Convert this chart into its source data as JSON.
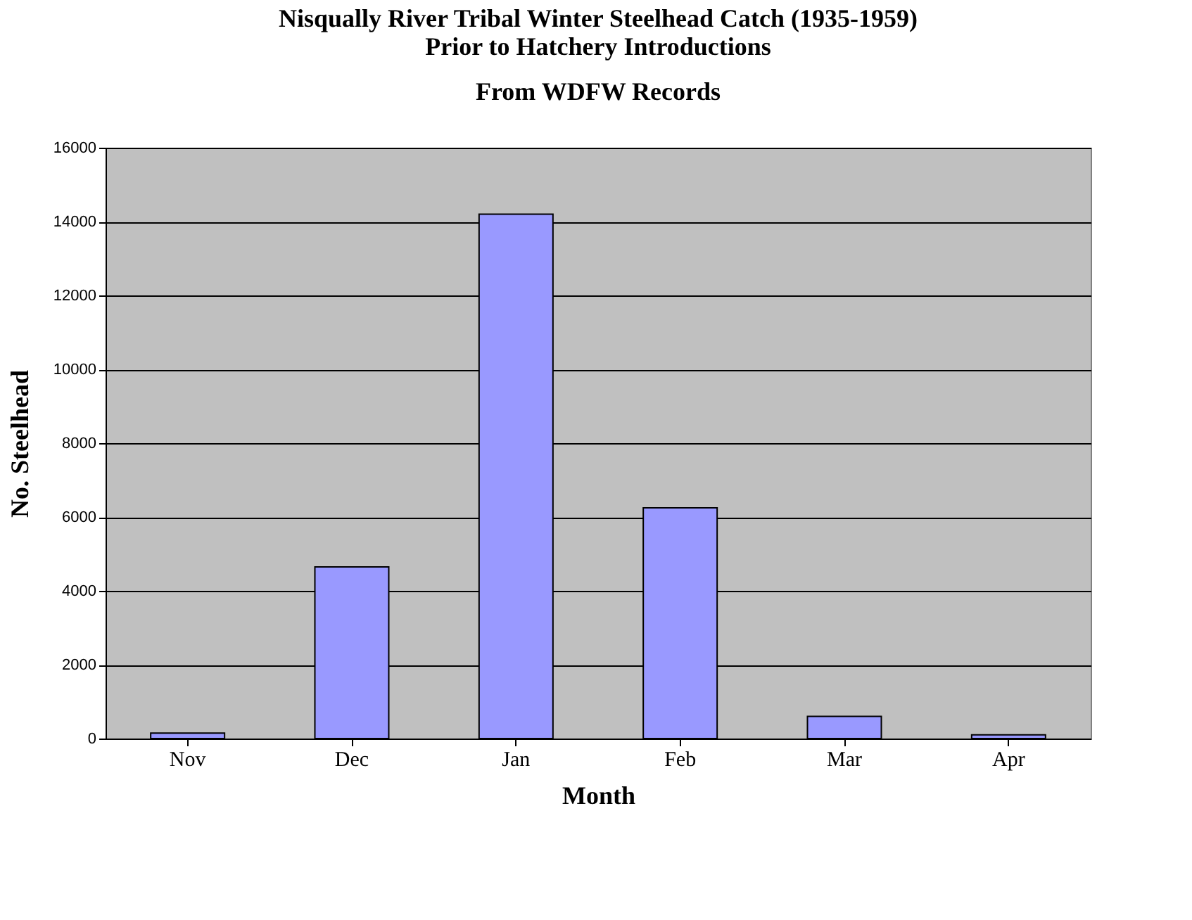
{
  "chart_data": {
    "type": "bar",
    "title": "Nisqually River Tribal Winter Steelhead Catch (1935-1959) Prior to Hatchery Introductions",
    "subtitle": "From WDFW Records",
    "xlabel": "Month",
    "ylabel": "No. Steelhead",
    "categories": [
      "Nov",
      "Dec",
      "Jan",
      "Feb",
      "Mar",
      "Apr"
    ],
    "values": [
      150,
      4650,
      14200,
      6250,
      600,
      100
    ],
    "color": "#9999ff",
    "ylim": [
      0,
      16000
    ],
    "yticks": [
      0,
      2000,
      4000,
      6000,
      8000,
      10000,
      12000,
      14000,
      16000
    ],
    "grid": "y"
  }
}
